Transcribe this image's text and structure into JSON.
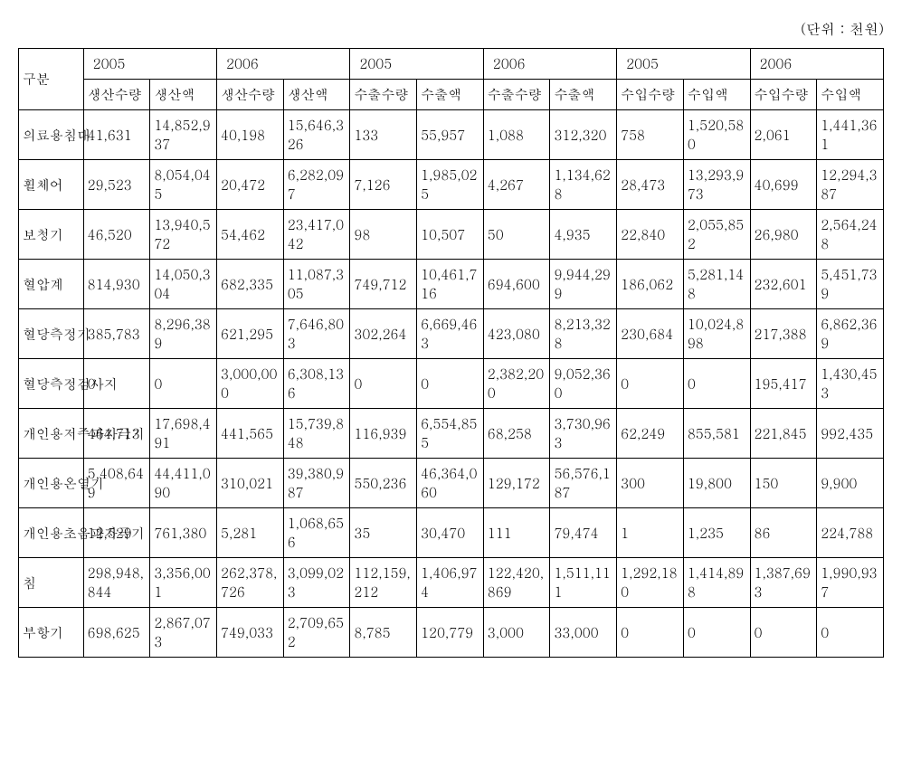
{
  "unit_label": "(단위 : 천원)",
  "headers": {
    "gubun": "구분",
    "years": [
      "2005",
      "2006",
      "2005",
      "2006",
      "2005",
      "2006"
    ],
    "sub": [
      "생산수량",
      "생산액",
      "생산수량",
      "생산액",
      "수출수량",
      "수출액",
      "수출수량",
      "수출액",
      "수입수량",
      "수입액",
      "수입수량",
      "수입액"
    ]
  },
  "rows": [
    {
      "label": "의료용침대",
      "cells": [
        "41,631",
        "14,852,937",
        "40,198",
        "15,646,326",
        "133",
        "55,957",
        "1,088",
        "312,320",
        "758",
        "1,520,580",
        "2,061",
        "1,441,361"
      ]
    },
    {
      "label": "휠체어",
      "cells": [
        "29,523",
        "8,054,045",
        "20,472",
        "6,282,097",
        "7,126",
        "1,985,025",
        "4,267",
        "1,134,628",
        "28,473",
        "13,293,973",
        "40,699",
        "12,294,387"
      ]
    },
    {
      "label": "보청기",
      "cells": [
        "46,520",
        "13,940,572",
        "54,462",
        "23,417,042",
        "98",
        "10,507",
        "50",
        "4,935",
        "22,840",
        "2,055,852",
        "26,980",
        "2,564,248"
      ]
    },
    {
      "label": "혈압계",
      "cells": [
        "814,930",
        "14,050,304",
        "682,335",
        "11,087,305",
        "749,712",
        "10,461,716",
        "694,600",
        "9,944,299",
        "186,062",
        "5,281,148",
        "232,601",
        "5,451,739"
      ]
    },
    {
      "label": "혈당측정기",
      "cells": [
        "385,783",
        "8,296,389",
        "621,295",
        "7,646,803",
        "302,264",
        "6,669,463",
        "423,080",
        "8,213,328",
        "230,684",
        "10,024,898",
        "217,388",
        "6,862,369"
      ]
    },
    {
      "label": "혈당측정검사지",
      "cells": [
        "0",
        "0",
        "3,000,000",
        "6,308,136",
        "0",
        "0",
        "2,382,200",
        "9,052,360",
        "0",
        "0",
        "195,417",
        "1,430,453"
      ]
    },
    {
      "label": "개인용저주파자극기",
      "cells": [
        "464,713",
        "17,698,491",
        "441,565",
        "15,739,848",
        "116,939",
        "6,554,855",
        "68,258",
        "3,730,963",
        "62,249",
        "855,581",
        "221,845",
        "992,435"
      ]
    },
    {
      "label": "개인용온열기",
      "cells": [
        "5,408,649",
        "44,411,090",
        "310,021",
        "39,380,987",
        "550,236",
        "46,364,060",
        "129,172",
        "56,576,187",
        "300",
        "19,800",
        "150",
        "9,900"
      ]
    },
    {
      "label": "개인용초음파자극기",
      "cells": [
        "12,529",
        "761,380",
        "5,281",
        "1,068,656",
        "35",
        "30,470",
        "111",
        "79,474",
        "1",
        "1,235",
        "86",
        "224,788"
      ]
    },
    {
      "label": "침",
      "cells": [
        "298,948,844",
        "3,356,001",
        "262,378,726",
        "3,099,023",
        "112,159,212",
        "1,406,974",
        "122,420,869",
        "1,511,111",
        "1,292,180",
        "1,414,898",
        "1,387,693",
        "1,990,937"
      ]
    },
    {
      "label": "부항기",
      "cells": [
        "698,625",
        "2,867,073",
        "749,033",
        "2,709,652",
        "8,785",
        "120,779",
        "3,000",
        "33,000",
        "0",
        "0",
        "0",
        "0"
      ]
    }
  ]
}
